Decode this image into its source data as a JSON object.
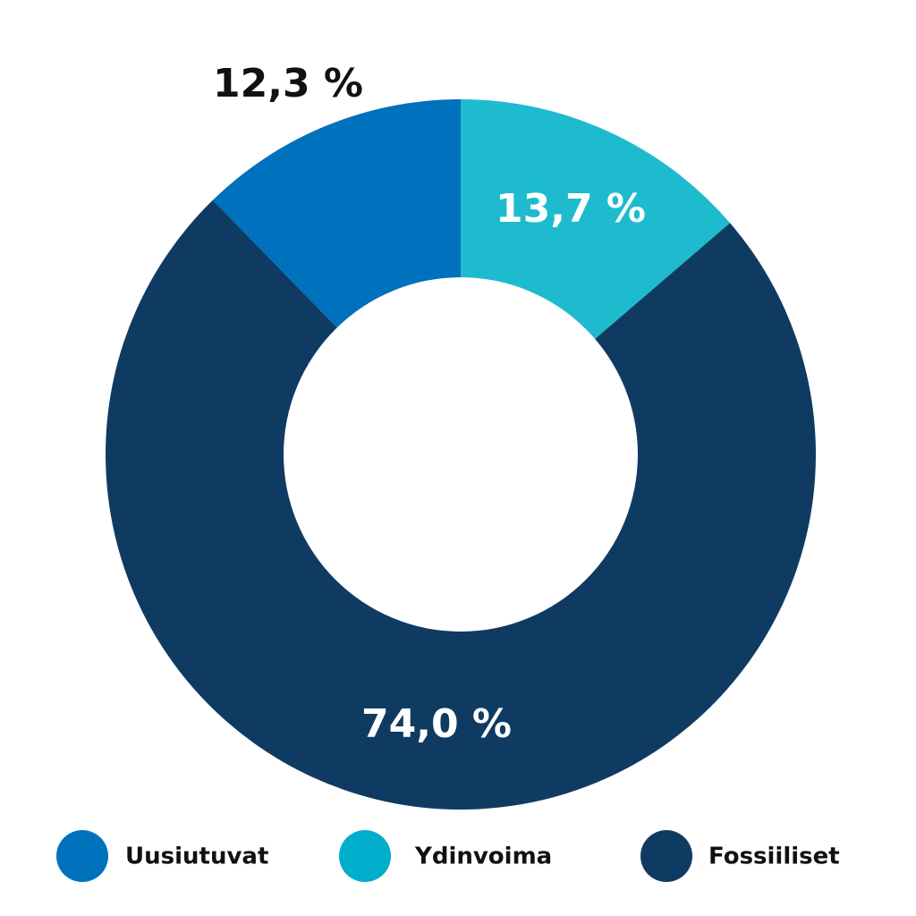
{
  "chart_data": {
    "type": "pie",
    "variant": "donut",
    "series": [
      {
        "name": "Uusiutuvat",
        "value": 12.3,
        "label": "12,3 %",
        "color": "#0071BC",
        "label_color": "#111111"
      },
      {
        "name": "Ydinvoima",
        "value": 13.7,
        "label": "13,7 %",
        "color": "#1EBBCF",
        "label_color": "#ffffff"
      },
      {
        "name": "Fossiiliset",
        "value": 74.0,
        "label": "74,0 %",
        "color": "#0F3B62",
        "label_color": "#ffffff"
      }
    ],
    "legend": {
      "placement": "bottom",
      "items": [
        {
          "label": "Uusiutuvat",
          "color": "#0071BC"
        },
        {
          "label": "Ydinvoima",
          "color": "#00AECB"
        },
        {
          "label": "Fossiiliset",
          "color": "#0F3B62"
        }
      ]
    }
  }
}
